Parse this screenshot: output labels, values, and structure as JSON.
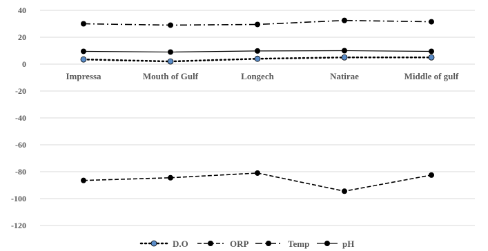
{
  "chart_data": {
    "type": "line",
    "title": "",
    "xlabel": "",
    "ylabel": "",
    "categories": [
      "Impressa",
      "Mouth of Gulf",
      "Longech",
      "Natirae",
      "Middle of gulf"
    ],
    "ylim": [
      -120,
      40
    ],
    "yticks": [
      40,
      20,
      0,
      -20,
      -40,
      -60,
      -80,
      -100,
      -120
    ],
    "grid": true,
    "legend_position": "bottom",
    "series": [
      {
        "name": "D.O",
        "values": [
          3.5,
          2.0,
          4.0,
          5.0,
          5.0
        ],
        "color": "#000000",
        "marker_color": "#5b8dc9",
        "dash": "dotted"
      },
      {
        "name": "ORP",
        "values": [
          -86.5,
          -84.5,
          -81,
          -94.5,
          -82.5
        ],
        "color": "#000000",
        "marker_color": "#000000",
        "dash": "dashed"
      },
      {
        "name": "Temp",
        "values": [
          30,
          29,
          29.5,
          32.5,
          31.5
        ],
        "color": "#000000",
        "marker_color": "#000000",
        "dash": "dashdot"
      },
      {
        "name": "pH",
        "values": [
          9.5,
          9.0,
          9.8,
          10.0,
          9.5
        ],
        "color": "#000000",
        "marker_color": "#000000",
        "dash": "solid"
      }
    ]
  }
}
